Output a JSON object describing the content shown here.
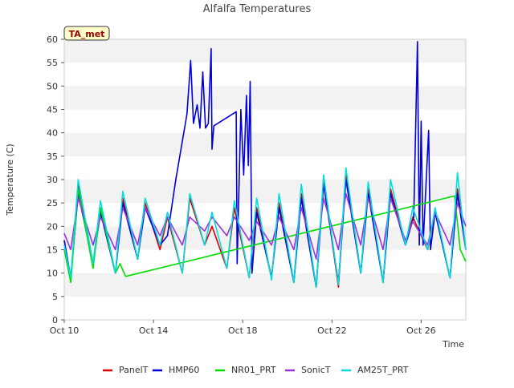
{
  "chart_data": {
    "type": "line",
    "title": "Alfalfa Temperatures",
    "xlabel": "Time",
    "ylabel": "Temperature (C)",
    "site_badge": "TA_met",
    "ylim": [
      0,
      60
    ],
    "xlim": [
      "2023-10-10",
      "2023-10-28"
    ],
    "yticks": [
      0,
      5,
      10,
      15,
      20,
      25,
      30,
      35,
      40,
      45,
      50,
      55,
      60
    ],
    "xticks": [
      {
        "date": "2023-10-10",
        "label": "Oct 10"
      },
      {
        "date": "2023-10-14",
        "label": "Oct 14"
      },
      {
        "date": "2023-10-18",
        "label": "Oct 18"
      },
      {
        "date": "2023-10-22",
        "label": "Oct 22"
      },
      {
        "date": "2023-10-26",
        "label": "Oct 26"
      }
    ],
    "grid": "horizontal bands",
    "legend_placement": "bottom",
    "series": [
      {
        "name": "PanelT",
        "color": "#dd0000",
        "points": [
          [
            "2023-10-10T00:00",
            17
          ],
          [
            "2023-10-10T07:00",
            8.5
          ],
          [
            "2023-10-10T15:00",
            29
          ],
          [
            "2023-10-11T07:00",
            12
          ],
          [
            "2023-10-11T15:00",
            24
          ],
          [
            "2023-10-12T07:00",
            10
          ],
          [
            "2023-10-12T15:00",
            26
          ],
          [
            "2023-10-13T07:00",
            13
          ],
          [
            "2023-10-13T15:00",
            25
          ],
          [
            "2023-10-14T07:00",
            15
          ],
          [
            "2023-10-14T15:00",
            22
          ],
          [
            "2023-10-15T07:00",
            10
          ],
          [
            "2023-10-15T15:00",
            26
          ],
          [
            "2023-10-16T07:00",
            16
          ],
          [
            "2023-10-16T15:00",
            20
          ],
          [
            "2023-10-17T07:00",
            11
          ],
          [
            "2023-10-17T15:00",
            24
          ],
          [
            "2023-10-18T07:00",
            9
          ],
          [
            "2023-10-18T15:00",
            24
          ],
          [
            "2023-10-19T07:00",
            9
          ],
          [
            "2023-10-19T15:00",
            25
          ],
          [
            "2023-10-20T07:00",
            8
          ],
          [
            "2023-10-20T15:00",
            27
          ],
          [
            "2023-10-21T07:00",
            7
          ],
          [
            "2023-10-21T15:00",
            30
          ],
          [
            "2023-10-22T07:00",
            7
          ],
          [
            "2023-10-22T15:00",
            31
          ],
          [
            "2023-10-23T07:00",
            10
          ],
          [
            "2023-10-23T15:00",
            28
          ],
          [
            "2023-10-24T07:00",
            8
          ],
          [
            "2023-10-24T15:00",
            28
          ],
          [
            "2023-10-25T07:00",
            16
          ],
          [
            "2023-10-25T15:00",
            22
          ],
          [
            "2023-10-26T07:00",
            15
          ],
          [
            "2023-10-26T15:00",
            23
          ],
          [
            "2023-10-27T07:00",
            9
          ],
          [
            "2023-10-27T15:00",
            28
          ],
          [
            "2023-10-28T00:00",
            15
          ]
        ]
      },
      {
        "name": "HMP60",
        "color": "#0000dd",
        "points": [
          [
            "2023-10-10T00:00",
            17
          ],
          [
            "2023-10-10T07:00",
            9
          ],
          [
            "2023-10-10T15:00",
            27
          ],
          [
            "2023-10-11T07:00",
            12
          ],
          [
            "2023-10-11T15:00",
            23
          ],
          [
            "2023-10-12T07:00",
            10
          ],
          [
            "2023-10-12T15:00",
            25
          ],
          [
            "2023-10-13T07:00",
            13
          ],
          [
            "2023-10-13T15:00",
            24
          ],
          [
            "2023-10-14T07:00",
            16
          ],
          [
            "2023-10-14T15:00",
            18
          ],
          [
            "2023-10-15T00:00",
            30
          ],
          [
            "2023-10-15T12:00",
            44
          ],
          [
            "2023-10-15T16:00",
            55.5
          ],
          [
            "2023-10-15T19:00",
            42
          ],
          [
            "2023-10-15T23:00",
            46
          ],
          [
            "2023-10-16T02:00",
            41
          ],
          [
            "2023-10-16T05:00",
            53
          ],
          [
            "2023-10-16T08:00",
            41
          ],
          [
            "2023-10-16T11:00",
            42
          ],
          [
            "2023-10-16T14:00",
            58
          ],
          [
            "2023-10-16T15:00",
            36.5
          ],
          [
            "2023-10-16T17:00",
            41.5
          ],
          [
            "2023-10-17T17:00",
            44.5
          ],
          [
            "2023-10-17T18:00",
            12
          ],
          [
            "2023-10-17T22:00",
            45
          ],
          [
            "2023-10-18T01:00",
            31
          ],
          [
            "2023-10-18T04:00",
            48
          ],
          [
            "2023-10-18T06:00",
            33
          ],
          [
            "2023-10-18T08:00",
            51
          ],
          [
            "2023-10-18T10:00",
            10
          ],
          [
            "2023-10-18T15:00",
            23
          ],
          [
            "2023-10-19T07:00",
            9
          ],
          [
            "2023-10-19T15:00",
            24
          ],
          [
            "2023-10-20T07:00",
            8
          ],
          [
            "2023-10-20T15:00",
            26
          ],
          [
            "2023-10-21T07:00",
            7
          ],
          [
            "2023-10-21T15:00",
            29
          ],
          [
            "2023-10-22T07:00",
            8
          ],
          [
            "2023-10-22T15:00",
            30
          ],
          [
            "2023-10-23T07:00",
            10
          ],
          [
            "2023-10-23T15:00",
            27
          ],
          [
            "2023-10-24T07:00",
            8
          ],
          [
            "2023-10-24T15:00",
            27
          ],
          [
            "2023-10-25T07:00",
            16
          ],
          [
            "2023-10-25T16:00",
            22
          ],
          [
            "2023-10-25T20:00",
            59.5
          ],
          [
            "2023-10-25T22:00",
            16
          ],
          [
            "2023-10-26T00:00",
            42.5
          ],
          [
            "2023-10-26T02:00",
            16
          ],
          [
            "2023-10-26T08:00",
            40.5
          ],
          [
            "2023-10-26T10:00",
            15
          ],
          [
            "2023-10-26T15:00",
            23
          ],
          [
            "2023-10-27T07:00",
            9
          ],
          [
            "2023-10-27T15:00",
            27
          ],
          [
            "2023-10-28T00:00",
            15
          ]
        ]
      },
      {
        "name": "NR01_PRT",
        "color": "#00dd00",
        "points": [
          [
            "2023-10-10T00:00",
            15
          ],
          [
            "2023-10-10T07:00",
            8
          ],
          [
            "2023-10-10T15:00",
            28
          ],
          [
            "2023-10-11T07:00",
            11
          ],
          [
            "2023-10-11T15:00",
            24
          ],
          [
            "2023-10-12T07:00",
            10
          ],
          [
            "2023-10-12T12:00",
            12
          ],
          [
            "2023-10-12T18:00",
            9.3
          ],
          [
            "2023-10-27T12:00",
            26.5
          ],
          [
            "2023-10-27T18:00",
            15
          ],
          [
            "2023-10-28T00:00",
            12.5
          ]
        ]
      },
      {
        "name": "SonicT",
        "color": "#9933dd",
        "points": [
          [
            "2023-10-10T00:00",
            18.5
          ],
          [
            "2023-10-10T07:00",
            15
          ],
          [
            "2023-10-10T15:00",
            26
          ],
          [
            "2023-10-11T07:00",
            16
          ],
          [
            "2023-10-11T15:00",
            22
          ],
          [
            "2023-10-12T07:00",
            15
          ],
          [
            "2023-10-12T15:00",
            24
          ],
          [
            "2023-10-13T07:00",
            16
          ],
          [
            "2023-10-13T15:00",
            24
          ],
          [
            "2023-10-14T07:00",
            18
          ],
          [
            "2023-10-14T15:00",
            22
          ],
          [
            "2023-10-15T07:00",
            16
          ],
          [
            "2023-10-15T15:00",
            22
          ],
          [
            "2023-10-16T07:00",
            19
          ],
          [
            "2023-10-16T15:00",
            22
          ],
          [
            "2023-10-17T07:00",
            18
          ],
          [
            "2023-10-17T15:00",
            22
          ],
          [
            "2023-10-18T07:00",
            17
          ],
          [
            "2023-10-18T15:00",
            21
          ],
          [
            "2023-10-19T07:00",
            16
          ],
          [
            "2023-10-19T15:00",
            22
          ],
          [
            "2023-10-20T07:00",
            15
          ],
          [
            "2023-10-20T15:00",
            24
          ],
          [
            "2023-10-21T07:00",
            13
          ],
          [
            "2023-10-21T15:00",
            26
          ],
          [
            "2023-10-22T07:00",
            15
          ],
          [
            "2023-10-22T15:00",
            27
          ],
          [
            "2023-10-23T07:00",
            16
          ],
          [
            "2023-10-23T15:00",
            26
          ],
          [
            "2023-10-24T07:00",
            15
          ],
          [
            "2023-10-24T15:00",
            26
          ],
          [
            "2023-10-25T07:00",
            17
          ],
          [
            "2023-10-25T15:00",
            21
          ],
          [
            "2023-10-26T07:00",
            16
          ],
          [
            "2023-10-26T15:00",
            23
          ],
          [
            "2023-10-27T07:00",
            16
          ],
          [
            "2023-10-27T15:00",
            25
          ],
          [
            "2023-10-28T00:00",
            20
          ]
        ]
      },
      {
        "name": "AM25T_PRT",
        "color": "#00dddd",
        "points": [
          [
            "2023-10-10T00:00",
            16
          ],
          [
            "2023-10-10T07:00",
            9
          ],
          [
            "2023-10-10T15:00",
            30
          ],
          [
            "2023-10-11T07:00",
            12
          ],
          [
            "2023-10-11T15:00",
            25.5
          ],
          [
            "2023-10-12T07:00",
            10
          ],
          [
            "2023-10-12T15:00",
            27.5
          ],
          [
            "2023-10-13T07:00",
            13
          ],
          [
            "2023-10-13T15:00",
            26
          ],
          [
            "2023-10-14T07:00",
            16
          ],
          [
            "2023-10-14T15:00",
            23
          ],
          [
            "2023-10-15T07:00",
            10
          ],
          [
            "2023-10-15T15:00",
            27
          ],
          [
            "2023-10-16T07:00",
            16
          ],
          [
            "2023-10-16T15:00",
            23
          ],
          [
            "2023-10-17T07:00",
            11
          ],
          [
            "2023-10-17T15:00",
            25.5
          ],
          [
            "2023-10-18T07:00",
            9
          ],
          [
            "2023-10-18T15:00",
            26
          ],
          [
            "2023-10-19T07:00",
            8.5
          ],
          [
            "2023-10-19T15:00",
            27
          ],
          [
            "2023-10-20T07:00",
            8
          ],
          [
            "2023-10-20T15:00",
            29
          ],
          [
            "2023-10-21T07:00",
            7
          ],
          [
            "2023-10-21T15:00",
            31
          ],
          [
            "2023-10-22T07:00",
            7.5
          ],
          [
            "2023-10-22T15:00",
            32.5
          ],
          [
            "2023-10-23T07:00",
            10
          ],
          [
            "2023-10-23T15:00",
            29.5
          ],
          [
            "2023-10-24T07:00",
            8
          ],
          [
            "2023-10-24T15:00",
            30
          ],
          [
            "2023-10-25T07:00",
            16
          ],
          [
            "2023-10-25T15:00",
            24
          ],
          [
            "2023-10-26T07:00",
            15
          ],
          [
            "2023-10-26T15:00",
            24
          ],
          [
            "2023-10-27T07:00",
            9
          ],
          [
            "2023-10-27T15:00",
            31.5
          ],
          [
            "2023-10-28T00:00",
            15
          ]
        ]
      }
    ]
  }
}
